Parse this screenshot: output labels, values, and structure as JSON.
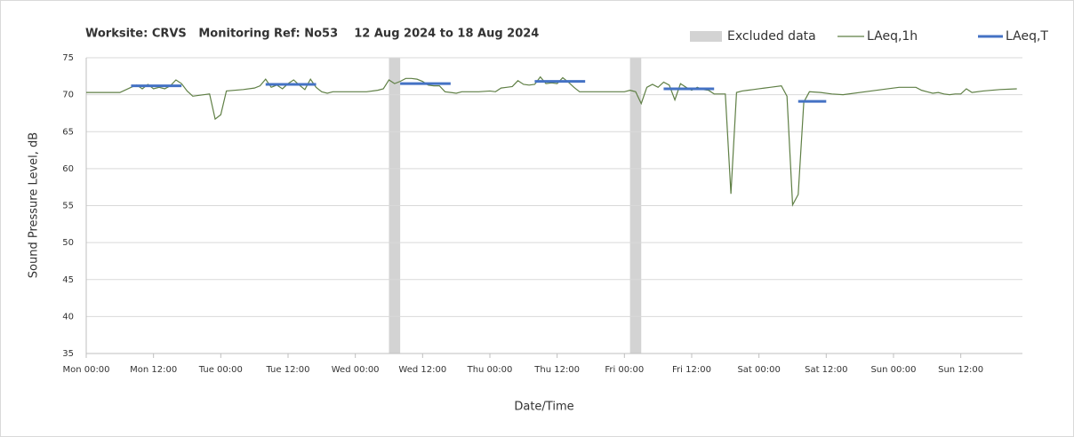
{
  "chart_data": {
    "type": "line",
    "title": "Worksite: CRVS   Monitoring Ref: No53    12 Aug 2024 to 18 Aug 2024",
    "x_label": "Date/Time",
    "y_label": "Sound Pressure Level, dB",
    "xlim": [
      0,
      167
    ],
    "ylim": [
      35,
      75
    ],
    "yticks": [
      35,
      40,
      45,
      50,
      55,
      60,
      65,
      70,
      75
    ],
    "xticks": [
      {
        "value": 0,
        "label": "Mon 00:00"
      },
      {
        "value": 12,
        "label": "Mon 12:00"
      },
      {
        "value": 24,
        "label": "Tue 00:00"
      },
      {
        "value": 36,
        "label": "Tue 12:00"
      },
      {
        "value": 48,
        "label": "Wed 00:00"
      },
      {
        "value": 60,
        "label": "Wed 12:00"
      },
      {
        "value": 72,
        "label": "Thu 00:00"
      },
      {
        "value": 84,
        "label": "Thu 12:00"
      },
      {
        "value": 96,
        "label": "Fri 00:00"
      },
      {
        "value": 108,
        "label": "Fri 12:00"
      },
      {
        "value": 120,
        "label": "Sat 00:00"
      },
      {
        "value": 132,
        "label": "Sat 12:00"
      },
      {
        "value": 144,
        "label": "Sun 00:00"
      },
      {
        "value": 156,
        "label": "Sun 12:00"
      }
    ],
    "grid": true,
    "excluded": {
      "name": "Excluded data",
      "color": "#d3d3d3",
      "starts": [
        54,
        97
      ],
      "ends": [
        56,
        99
      ]
    },
    "series": [
      {
        "name": "LAeq,1h",
        "color": "#5f7f45",
        "x": [
          0,
          6,
          8,
          9,
          10,
          11,
          12,
          13,
          14,
          15,
          16,
          17,
          18,
          19,
          20,
          22,
          23,
          24,
          25,
          28,
          30,
          31,
          32,
          33,
          34,
          35,
          36,
          37,
          38,
          39,
          40,
          41,
          42,
          43,
          44,
          50,
          52,
          53,
          54,
          55,
          56,
          57,
          58,
          59,
          60,
          61,
          62,
          63,
          64,
          65,
          66,
          67,
          70,
          72,
          73,
          74,
          75,
          76,
          77,
          78,
          79,
          80,
          81,
          82,
          83,
          84,
          85,
          86,
          87,
          88,
          96,
          97,
          98,
          99,
          100,
          101,
          102,
          103,
          104,
          105,
          106,
          107,
          108,
          109,
          110,
          111,
          112,
          114,
          115,
          116,
          117,
          118,
          119,
          120,
          121,
          122,
          124,
          125,
          126,
          127,
          128,
          129,
          131,
          133,
          135,
          140,
          143,
          145,
          148,
          149,
          150,
          151,
          152,
          153,
          154,
          155,
          156,
          157,
          158,
          160,
          163,
          166
        ],
        "values": [
          70.3,
          70.3,
          71.0,
          71.3,
          70.8,
          71.4,
          70.8,
          71.0,
          70.8,
          71.2,
          72.0,
          71.5,
          70.5,
          69.8,
          69.9,
          70.1,
          66.7,
          67.3,
          70.5,
          70.7,
          70.9,
          71.2,
          72.1,
          71.0,
          71.3,
          70.8,
          71.5,
          72.0,
          71.3,
          70.7,
          72.1,
          71.0,
          70.4,
          70.2,
          70.4,
          70.4,
          70.6,
          70.8,
          72.0,
          71.5,
          71.8,
          72.2,
          72.2,
          72.1,
          71.8,
          71.3,
          71.2,
          71.2,
          70.4,
          70.3,
          70.2,
          70.4,
          70.4,
          70.5,
          70.4,
          70.9,
          71.0,
          71.1,
          71.9,
          71.4,
          71.3,
          71.4,
          72.4,
          71.5,
          71.6,
          71.5,
          72.3,
          71.7,
          71.0,
          70.4,
          70.4,
          70.6,
          70.4,
          68.8,
          71.0,
          71.4,
          71.0,
          71.7,
          71.3,
          69.3,
          71.5,
          71.0,
          70.6,
          71.0,
          70.7,
          70.6,
          70.1,
          70.1,
          56.6,
          70.3,
          70.5,
          70.6,
          70.7,
          70.8,
          70.9,
          71.0,
          71.2,
          69.8,
          55.1,
          56.5,
          69.0,
          70.4,
          70.3,
          70.1,
          70.0,
          70.5,
          70.8,
          71.0,
          71.0,
          70.6,
          70.4,
          70.2,
          70.3,
          70.1,
          70.0,
          70.1,
          70.1,
          70.8,
          70.3,
          70.5,
          70.7,
          70.8
        ]
      },
      {
        "name": "LAeq,T",
        "color": "#4472c4",
        "x_start": [
          8,
          32,
          56,
          80,
          103,
          127
        ],
        "x_end": [
          17,
          41,
          65,
          89,
          112,
          132
        ],
        "values": [
          71.2,
          71.4,
          71.5,
          71.8,
          70.8,
          69.1
        ]
      }
    ]
  }
}
